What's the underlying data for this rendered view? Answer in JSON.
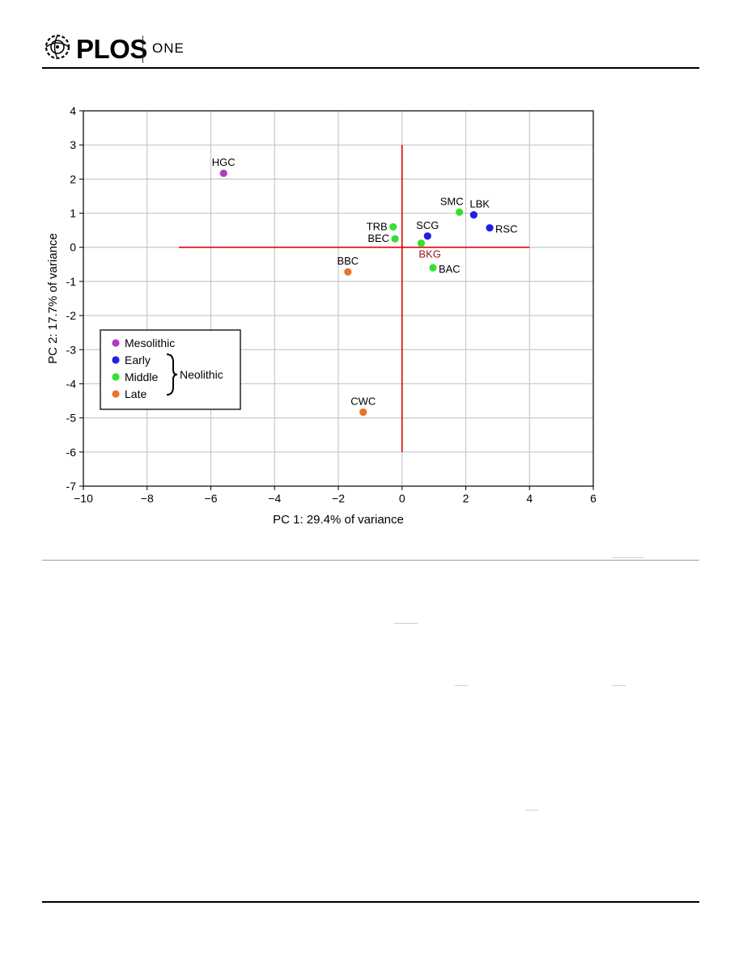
{
  "header": {
    "brand": "PLOS",
    "sub": "ONE"
  },
  "chart_data": {
    "type": "scatter",
    "title": "",
    "xlabel": "PC 1: 29.4% of variance",
    "ylabel": "PC 2: 17.7% of variance",
    "xlim": [
      -10,
      6
    ],
    "ylim": [
      -7,
      4
    ],
    "x_ticks": [
      -10,
      -8,
      -6,
      -4,
      -2,
      0,
      2,
      4,
      6
    ],
    "y_ticks": [
      4,
      3,
      2,
      1,
      0,
      -1,
      -2,
      -3,
      -4,
      -5,
      -6,
      -7
    ],
    "x_tick_labels": [
      "−10",
      "−8",
      "−6",
      "−4",
      "−2",
      "0",
      "2",
      "4",
      "6"
    ],
    "y_tick_labels": [
      "4",
      "3",
      "2",
      "1",
      "0",
      "-1",
      "-2",
      "-3",
      "-4",
      "-5",
      "-6",
      "-7"
    ],
    "grid": true,
    "reference_lines": {
      "horizontal": {
        "y": 0,
        "x_range": [
          -7,
          4
        ],
        "color": "#e00000"
      },
      "vertical": {
        "x": 0,
        "y_range": [
          -6,
          3
        ],
        "color": "#e00000"
      }
    },
    "group_colors": {
      "Mesolithic": "#b23cc1",
      "Early": "#1f1fe8",
      "Middle": "#33e033",
      "Late": "#e8742a"
    },
    "points": [
      {
        "label": "HGC",
        "x": -5.6,
        "y": 2.17,
        "group": "Mesolithic",
        "label_pos": "above"
      },
      {
        "label": "LBK",
        "x": 2.25,
        "y": 0.95,
        "group": "Early",
        "label_pos": "upper-right"
      },
      {
        "label": "RSC",
        "x": 2.75,
        "y": 0.57,
        "group": "Early",
        "label_pos": "right"
      },
      {
        "label": "SCG",
        "x": 0.8,
        "y": 0.33,
        "group": "Early",
        "label_pos": "above"
      },
      {
        "label": "SMC",
        "x": 1.8,
        "y": 1.03,
        "group": "Middle",
        "label_pos": "upper-left"
      },
      {
        "label": "TRB",
        "x": -0.28,
        "y": 0.6,
        "group": "Middle",
        "label_pos": "left"
      },
      {
        "label": "BEC",
        "x": -0.22,
        "y": 0.25,
        "group": "Middle",
        "label_pos": "left"
      },
      {
        "label": "BKG",
        "x": 0.6,
        "y": 0.12,
        "group": "Middle",
        "label_pos": "below-right",
        "label_color": "#8b1a1a"
      },
      {
        "label": "BAC",
        "x": 0.97,
        "y": -0.6,
        "group": "Middle",
        "label_pos": "right"
      },
      {
        "label": "BBC",
        "x": -1.7,
        "y": -0.72,
        "group": "Late",
        "label_pos": "above"
      },
      {
        "label": "CWC",
        "x": -1.22,
        "y": -4.83,
        "group": "Late",
        "label_pos": "above"
      }
    ],
    "legend": {
      "placement": "bottom-left",
      "items": [
        {
          "name": "Mesolithic",
          "color": "#b23cc1"
        },
        {
          "name": "Early",
          "color": "#1f1fe8"
        },
        {
          "name": "Middle",
          "color": "#33e033"
        },
        {
          "name": "Late",
          "color": "#e8742a"
        }
      ],
      "bracket_label": "Neolithic"
    }
  }
}
